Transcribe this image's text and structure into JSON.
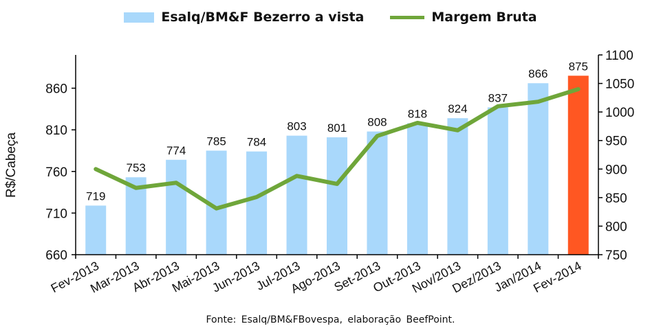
{
  "legend": {
    "bar_label": "Esalq/BM&F Bezerro a vista",
    "line_label": "Margem Bruta"
  },
  "source": "Fonte:  Esalq/BM&FBovespa,  elaboração  BeefPoint.",
  "colors": {
    "bar": "#a9d8fb",
    "bar_highlight": "#ff5722",
    "line": "#6fa63a",
    "axis": "#000000"
  },
  "chart_data": {
    "type": "bar",
    "categories": [
      "Fev-2013",
      "Mar-2013",
      "Abr-2013",
      "Mai-2013",
      "Jun-2013",
      "Jul-2013",
      "Ago-2013",
      "Set-2013",
      "Out-2013",
      "Nov/2013",
      "Dez/2013",
      "Jan/2014",
      "Fev-2014"
    ],
    "series": [
      {
        "name": "Esalq/BM&F Bezerro a vista",
        "type": "bar",
        "axis": "left",
        "values": [
          719,
          753,
          774,
          785,
          784,
          803,
          801,
          808,
          818,
          824,
          837,
          866,
          875
        ],
        "highlight_index": 12
      },
      {
        "name": "Margem Bruta",
        "type": "line",
        "axis": "right",
        "values": [
          900,
          867,
          876,
          831,
          851,
          888,
          874,
          958,
          981,
          968,
          1010,
          1018,
          1040
        ]
      }
    ],
    "ylabel": "R$/Cabeça",
    "ylim": [
      660,
      900
    ],
    "yticks": [
      660,
      710,
      760,
      810,
      860
    ],
    "y2lim": [
      750,
      1100
    ],
    "y2ticks": [
      750,
      800,
      850,
      900,
      950,
      1000,
      1050,
      1100
    ],
    "grid": false,
    "legend_position": "top"
  }
}
